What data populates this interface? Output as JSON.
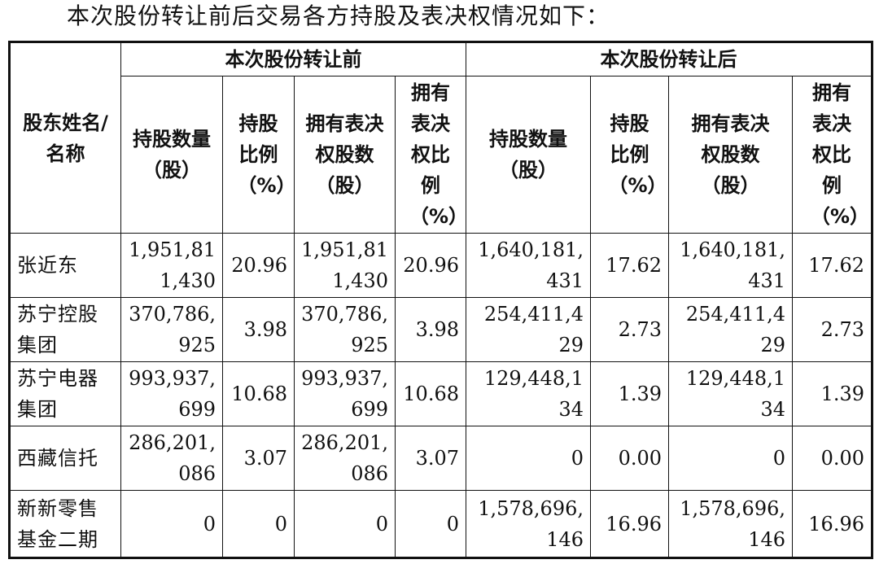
{
  "intro_text": "本次股份转让前后交易各方持股及表决权情况如下：",
  "table": {
    "name_header": "股东姓名/名称",
    "group_before": "本次股份转让前",
    "group_after": "本次股份转让后",
    "sub_headers_before": [
      "持股数量（股）",
      "持股比例（%）",
      "拥有表决权股数（股）",
      "拥有表决权比例（%）"
    ],
    "sub_headers_after": [
      "持股数量（股）",
      "持股比例（%）",
      "拥有表决权股数（股）",
      "拥有表决权比例（%）"
    ],
    "rows": [
      {
        "name": "张近东",
        "before_shares": "1,951,811,430",
        "before_pct": "20.96",
        "before_voting_shares": "1,951,811,430",
        "before_voting_pct": "20.96",
        "after_shares": "1,640,181,431",
        "after_pct": "17.62",
        "after_voting_shares": "1,640,181,431",
        "after_voting_pct": "17.62"
      },
      {
        "name": "苏宁控股集团",
        "before_shares": "370,786,925",
        "before_pct": "3.98",
        "before_voting_shares": "370,786,925",
        "before_voting_pct": "3.98",
        "after_shares": "254,411,429",
        "after_pct": "2.73",
        "after_voting_shares": "254,411,429",
        "after_voting_pct": "2.73"
      },
      {
        "name": "苏宁电器集团",
        "before_shares": "993,937,699",
        "before_pct": "10.68",
        "before_voting_shares": "993,937,699",
        "before_voting_pct": "10.68",
        "after_shares": "129,448,134",
        "after_pct": "1.39",
        "after_voting_shares": "129,448,134",
        "after_voting_pct": "1.39"
      },
      {
        "name": "西藏信托",
        "before_shares": "286,201,086",
        "before_pct": "3.07",
        "before_voting_shares": "286,201,086",
        "before_voting_pct": "3.07",
        "after_shares": "0",
        "after_pct": "0.00",
        "after_voting_shares": "0",
        "after_voting_pct": "0.00"
      },
      {
        "name": "新新零售基金二期",
        "before_shares": "0",
        "before_pct": "0",
        "before_voting_shares": "0",
        "before_voting_pct": "0",
        "after_shares": "1,578,696,146",
        "after_pct": "16.96",
        "after_voting_shares": "1,578,696,146",
        "after_voting_pct": "16.96"
      }
    ]
  }
}
